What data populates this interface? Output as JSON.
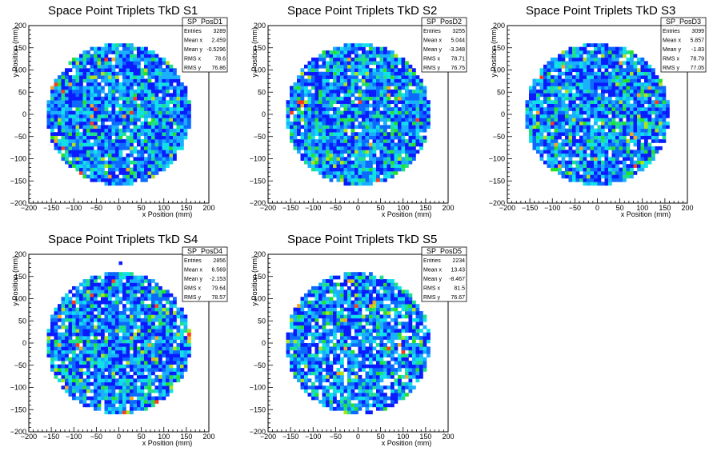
{
  "chart_data": [
    {
      "type": "heatmap",
      "title": "Space Point Triplets TkD S1",
      "xlabel": "x Position (mm)",
      "ylabel": "y Position (mm)",
      "xlim": [
        -200,
        200
      ],
      "ylim": [
        -200,
        200
      ],
      "x_ticks": [
        "−200",
        "−150",
        "−100",
        "−50",
        "0",
        "50",
        "100",
        "150",
        "200"
      ],
      "y_ticks": [
        "−200",
        "−150",
        "−100",
        "−50",
        "0",
        "50",
        "100",
        "150",
        "200"
      ],
      "stats_box": {
        "name": "SP_PosD1",
        "rows": [
          {
            "label": "Entries",
            "value": "3289"
          },
          {
            "label": "Mean x",
            "value": "2.459"
          },
          {
            "label": "Mean y",
            "value": "-0.5296"
          },
          {
            "label": "RMS x",
            "value": "78.6"
          },
          {
            "label": "RMS y",
            "value": "76.86"
          }
        ]
      },
      "spread": [
        -160,
        160,
        -155,
        160
      ]
    },
    {
      "type": "heatmap",
      "title": "Space Point Triplets TkD S2",
      "xlabel": "x Position (mm)",
      "ylabel": "y Position (mm)",
      "xlim": [
        -200,
        200
      ],
      "ylim": [
        -200,
        200
      ],
      "x_ticks": [
        "−200",
        "−150",
        "−100",
        "−50",
        "0",
        "50",
        "100",
        "150",
        "200"
      ],
      "y_ticks": [
        "−200",
        "−150",
        "−100",
        "−50",
        "0",
        "50",
        "100",
        "150",
        "200"
      ],
      "stats_box": {
        "name": "SP_PosD2",
        "rows": [
          {
            "label": "Entries",
            "value": "3255"
          },
          {
            "label": "Mean x",
            "value": "5.044"
          },
          {
            "label": "Mean y",
            "value": "-3.348"
          },
          {
            "label": "RMS x",
            "value": "78.71"
          },
          {
            "label": "RMS y",
            "value": "76.75"
          }
        ]
      },
      "spread": [
        -160,
        160,
        -155,
        160
      ]
    },
    {
      "type": "heatmap",
      "title": "Space Point Triplets TkD S3",
      "xlabel": "x Position (mm)",
      "ylabel": "y Position (mm)",
      "xlim": [
        -200,
        200
      ],
      "ylim": [
        -200,
        200
      ],
      "x_ticks": [
        "−200",
        "−150",
        "−100",
        "−50",
        "0",
        "50",
        "100",
        "150",
        "200"
      ],
      "y_ticks": [
        "−200",
        "−150",
        "−100",
        "−50",
        "0",
        "50",
        "100",
        "150",
        "200"
      ],
      "stats_box": {
        "name": "SP_PosD3",
        "rows": [
          {
            "label": "Entries",
            "value": "3099"
          },
          {
            "label": "Mean x",
            "value": "5.857"
          },
          {
            "label": "Mean y",
            "value": "-1.83"
          },
          {
            "label": "RMS x",
            "value": "78.79"
          },
          {
            "label": "RMS y",
            "value": "77.05"
          }
        ]
      },
      "spread": [
        -160,
        160,
        -155,
        160
      ]
    },
    {
      "type": "heatmap",
      "title": "Space Point Triplets TkD S4",
      "xlabel": "x Position (mm)",
      "ylabel": "y Position (mm)",
      "xlim": [
        -200,
        200
      ],
      "ylim": [
        -200,
        200
      ],
      "x_ticks": [
        "−200",
        "−150",
        "−100",
        "−50",
        "0",
        "50",
        "100",
        "150",
        "200"
      ],
      "y_ticks": [
        "−200",
        "−150",
        "−100",
        "−50",
        "0",
        "50",
        "100",
        "150",
        "200"
      ],
      "stats_box": {
        "name": "SP_PosD4",
        "rows": [
          {
            "label": "Entries",
            "value": "2856"
          },
          {
            "label": "Mean x",
            "value": "6.569"
          },
          {
            "label": "Mean y",
            "value": "-2.153"
          },
          {
            "label": "RMS x",
            "value": "79.64"
          },
          {
            "label": "RMS y",
            "value": "78.57"
          }
        ]
      },
      "spread": [
        -160,
        160,
        -155,
        160
      ]
    },
    {
      "type": "heatmap",
      "title": "Space Point Triplets TkD S5",
      "xlabel": "x Position (mm)",
      "ylabel": "y Position (mm)",
      "xlim": [
        -200,
        200
      ],
      "ylim": [
        -200,
        200
      ],
      "x_ticks": [
        "−200",
        "−150",
        "−100",
        "−50",
        "0",
        "50",
        "100",
        "150",
        "200"
      ],
      "y_ticks": [
        "−200",
        "−150",
        "−100",
        "−50",
        "0",
        "50",
        "100",
        "150",
        "200"
      ],
      "stats_box": {
        "name": "SP_PosD5",
        "rows": [
          {
            "label": "Entries",
            "value": "2234"
          },
          {
            "label": "Mean x",
            "value": "13.43"
          },
          {
            "label": "Mean y",
            "value": "-8.467"
          },
          {
            "label": "RMS x",
            "value": "81.5"
          },
          {
            "label": "RMS y",
            "value": "76.67"
          }
        ]
      },
      "spread": [
        -160,
        160,
        -155,
        160
      ]
    }
  ],
  "colors": {
    "scale": [
      "#0a1cff",
      "#0c6aff",
      "#1bb0ff",
      "#11e0e8",
      "#1ee08a",
      "#27e02a",
      "#aee31b",
      "#f5a623",
      "#ff3b1a"
    ],
    "frame": "#000000"
  }
}
